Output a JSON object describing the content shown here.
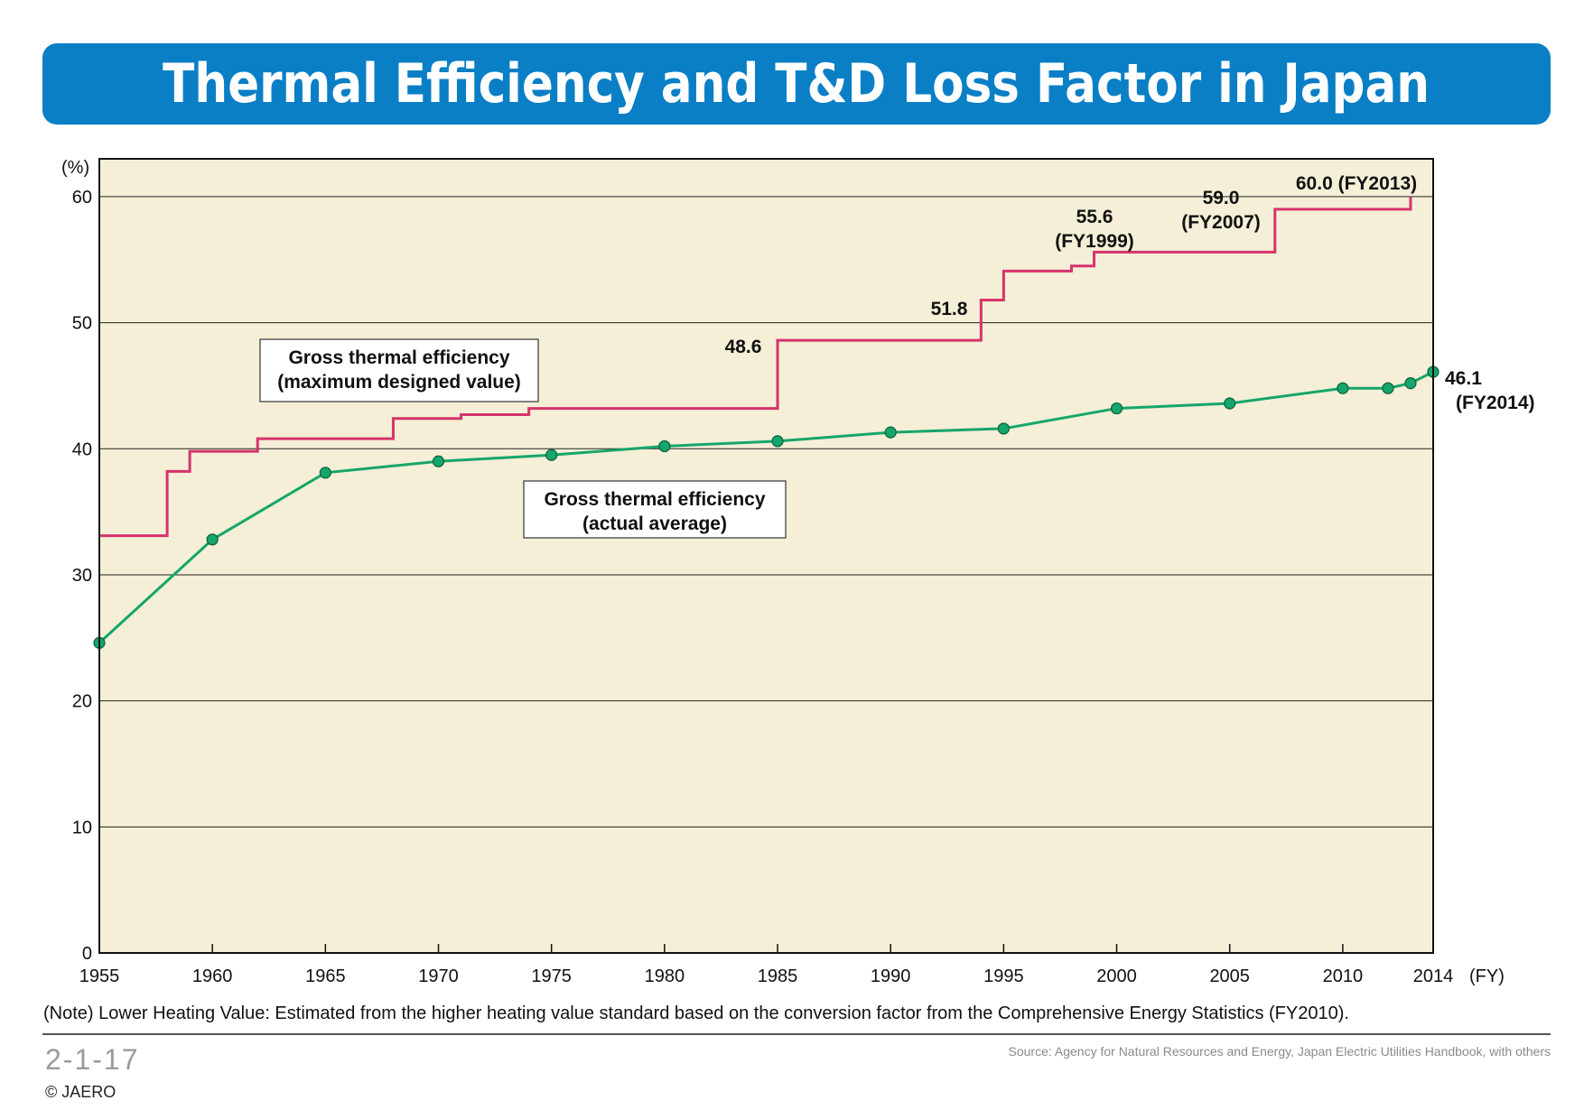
{
  "header": {
    "title": "Thermal Efficiency and T&D Loss Factor in Japan"
  },
  "chart_data": {
    "type": "line",
    "title": "Thermal Efficiency and T&D Loss Factor in Japan",
    "ylabel": "(%)",
    "xlabel": "(FY)",
    "xlim": [
      1955,
      2014
    ],
    "ylim": [
      0,
      63
    ],
    "x_ticks": [
      "1955",
      "1960",
      "1965",
      "1970",
      "1975",
      "1980",
      "1985",
      "1990",
      "1995",
      "2000",
      "2005",
      "2010",
      "2014"
    ],
    "y_ticks": [
      "0",
      "10",
      "20",
      "30",
      "40",
      "50",
      "60"
    ],
    "grid": true,
    "series": [
      {
        "name": "Gross thermal efficiency (maximum designed value)",
        "name_lines": [
          "Gross thermal efficiency",
          "(maximum designed value)"
        ],
        "style": "step",
        "color": "#d6336c",
        "x": [
          1955,
          1958,
          1959,
          1962,
          1968,
          1971,
          1974,
          1985,
          1994,
          1995,
          1998,
          1999,
          2007,
          2013
        ],
        "y": [
          33.1,
          38.2,
          39.8,
          40.8,
          42.4,
          42.7,
          43.2,
          48.6,
          51.8,
          54.1,
          54.5,
          55.6,
          59.0,
          60.0
        ],
        "end_x": 2013
      },
      {
        "name": "Gross thermal efficiency (actual average)",
        "name_lines": [
          "Gross thermal efficiency",
          "(actual average)"
        ],
        "style": "line-markers",
        "color": "#16a56b",
        "x": [
          1955,
          1960,
          1965,
          1970,
          1975,
          1980,
          1985,
          1990,
          1995,
          2000,
          2005,
          2010,
          2012,
          2013,
          2014
        ],
        "y": [
          24.6,
          32.8,
          38.1,
          39.0,
          39.5,
          40.2,
          40.6,
          41.3,
          41.6,
          43.2,
          43.6,
          44.8,
          44.8,
          45.2,
          46.1
        ]
      }
    ],
    "annotations": [
      {
        "lines": [
          "48.6"
        ]
      },
      {
        "lines": [
          "51.8"
        ]
      },
      {
        "lines": [
          "55.6",
          "(FY1999)"
        ]
      },
      {
        "lines": [
          "59.0",
          "(FY2007)"
        ]
      },
      {
        "lines": [
          "60.0 (FY2013)"
        ]
      },
      {
        "lines": [
          "46.1",
          "(FY2014)"
        ]
      }
    ],
    "colors": {
      "plot_background": "#f4efd6",
      "grid": "#222222",
      "max_series": "#d6336c",
      "avg_series": "#16a56b"
    }
  },
  "footer": {
    "note": "(Note) Lower Heating Value: Estimated from the higher heating value standard based on the conversion factor from the Comprehensive Energy Statistics (FY2010).",
    "figure_number": "2-1-17",
    "copyright": "© JAERO",
    "source": "Source: Agency for Natural Resources and Energy, Japan Electric Utilities Handbook, with others"
  }
}
